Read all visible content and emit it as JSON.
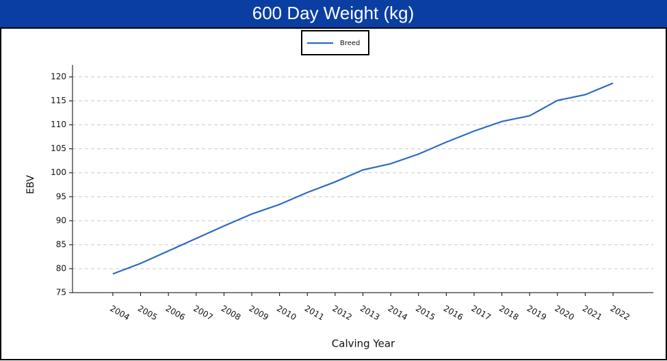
{
  "chart_data": {
    "type": "line",
    "title": "600 Day Weight (kg)",
    "categories": [
      "2004",
      "2005",
      "2006",
      "2007",
      "2008",
      "2009",
      "2010",
      "2011",
      "2012",
      "2013",
      "2014",
      "2015",
      "2016",
      "2017",
      "2018",
      "2019",
      "2020",
      "2021",
      "2022"
    ],
    "series": [
      {
        "name": "Breed",
        "color": "#2a6ac4",
        "values": [
          78.9,
          81.1,
          83.7,
          86.3,
          88.9,
          91.4,
          93.4,
          95.9,
          98.1,
          100.6,
          101.9,
          103.9,
          106.4,
          108.7,
          110.7,
          111.9,
          115.1,
          116.3,
          118.7
        ]
      }
    ],
    "x_label": "Calving Year",
    "y_label": "EBV",
    "ylim": [
      75,
      122.5
    ],
    "yticks": [
      75,
      80,
      85,
      90,
      95,
      100,
      105,
      110,
      115,
      120
    ],
    "grid": true,
    "legend": "top"
  }
}
